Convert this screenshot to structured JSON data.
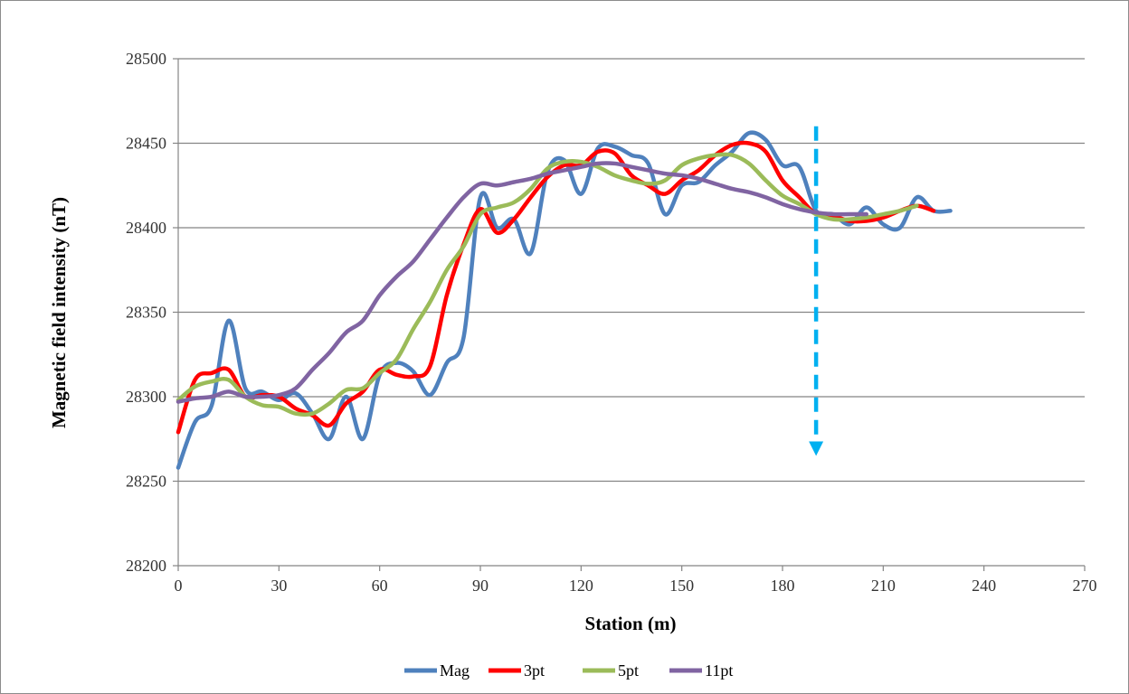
{
  "chart_data": {
    "type": "line",
    "title": "",
    "xlabel": "Station (m)",
    "ylabel": "Magnetic field intensity (nT)",
    "xlim": [
      0,
      270
    ],
    "ylim": [
      28200,
      28500
    ],
    "xticks": [
      0,
      30,
      60,
      90,
      120,
      150,
      180,
      210,
      240,
      270
    ],
    "yticks": [
      28200,
      28250,
      28300,
      28350,
      28400,
      28450,
      28500
    ],
    "grid": "horizontal",
    "legend_position": "bottom",
    "series": [
      {
        "name": "Mag",
        "color": "#4f81bd",
        "x": [
          0,
          5,
          10,
          15,
          20,
          25,
          30,
          35,
          40,
          45,
          50,
          55,
          60,
          65,
          70,
          75,
          80,
          85,
          90,
          95,
          100,
          105,
          110,
          115,
          120,
          125,
          130,
          135,
          140,
          145,
          150,
          155,
          160,
          165,
          170,
          175,
          180,
          185,
          190,
          195,
          200,
          205,
          210,
          215,
          220,
          225,
          230
        ],
        "y": [
          28258,
          28285,
          28295,
          28345,
          28305,
          28303,
          28298,
          28302,
          28290,
          28275,
          28300,
          28275,
          28313,
          28320,
          28315,
          28301,
          28320,
          28335,
          28418,
          28400,
          28405,
          28385,
          28433,
          28440,
          28420,
          28447,
          28448,
          28443,
          28438,
          28408,
          28425,
          28427,
          28437,
          28445,
          28456,
          28452,
          28437,
          28436,
          28410,
          28408,
          28402,
          28412,
          28402,
          28400,
          28418,
          28410,
          28410
        ]
      },
      {
        "name": "3pt",
        "color": "#ff0000",
        "x": [
          0,
          5,
          10,
          15,
          20,
          25,
          30,
          35,
          40,
          45,
          50,
          55,
          60,
          65,
          70,
          75,
          80,
          85,
          90,
          95,
          100,
          105,
          110,
          115,
          120,
          125,
          130,
          135,
          140,
          145,
          150,
          155,
          160,
          165,
          170,
          175,
          180,
          185,
          190,
          195,
          200,
          205,
          210,
          215,
          220,
          225
        ],
        "y": [
          28279,
          28310,
          28314,
          28316,
          28300,
          28301,
          28300,
          28293,
          28289,
          28283,
          28296,
          28303,
          28316,
          28313,
          28312,
          28318,
          28360,
          28390,
          28411,
          28397,
          28405,
          28418,
          28430,
          28437,
          28437,
          28445,
          28444,
          28431,
          28425,
          28420,
          28428,
          28434,
          28443,
          28449,
          28450,
          28445,
          28428,
          28418,
          28408,
          28407,
          28404,
          28404,
          28406,
          28410,
          28413,
          28410
        ]
      },
      {
        "name": "5pt",
        "color": "#9bbb59",
        "x": [
          0,
          5,
          10,
          15,
          20,
          25,
          30,
          35,
          40,
          45,
          50,
          55,
          60,
          65,
          70,
          75,
          80,
          85,
          90,
          95,
          100,
          105,
          110,
          115,
          120,
          125,
          130,
          135,
          140,
          145,
          150,
          155,
          160,
          165,
          170,
          175,
          180,
          185,
          190,
          195,
          200,
          205,
          210,
          215,
          220
        ],
        "y": [
          28298,
          28306,
          28309,
          28310,
          28300,
          28295,
          28294,
          28290,
          28290,
          28296,
          28304,
          28305,
          28314,
          28322,
          28340,
          28356,
          28375,
          28389,
          28408,
          28412,
          28415,
          28423,
          28435,
          28439,
          28439,
          28436,
          28431,
          28428,
          28426,
          28428,
          28437,
          28441,
          28443,
          28443,
          28438,
          28428,
          28419,
          28414,
          28408,
          28405,
          28405,
          28406,
          28408,
          28410,
          28413
        ]
      },
      {
        "name": "11pt",
        "color": "#8064a2",
        "x": [
          0,
          5,
          10,
          15,
          20,
          25,
          30,
          35,
          40,
          45,
          50,
          55,
          60,
          65,
          70,
          75,
          80,
          85,
          90,
          95,
          100,
          105,
          110,
          115,
          120,
          125,
          130,
          135,
          140,
          145,
          150,
          155,
          160,
          165,
          170,
          175,
          180,
          185,
          190,
          195,
          200,
          205
        ],
        "y": [
          28297,
          28299,
          28300,
          28303,
          28300,
          28300,
          28301,
          28305,
          28316,
          28326,
          28338,
          28345,
          28360,
          28371,
          28380,
          28393,
          28406,
          28418,
          28426,
          28425,
          28427,
          28429,
          28432,
          28434,
          28436,
          28438,
          28438,
          28436,
          28434,
          28432,
          28431,
          28429,
          28426,
          28423,
          28421,
          28418,
          28414,
          28411,
          28409,
          28408,
          28408,
          28408
        ]
      }
    ],
    "annotations": [
      {
        "type": "dashed-arrow",
        "color": "#00b0f0",
        "x": 190,
        "y_start": 28460,
        "y_end": 28265,
        "direction": "down"
      }
    ]
  }
}
